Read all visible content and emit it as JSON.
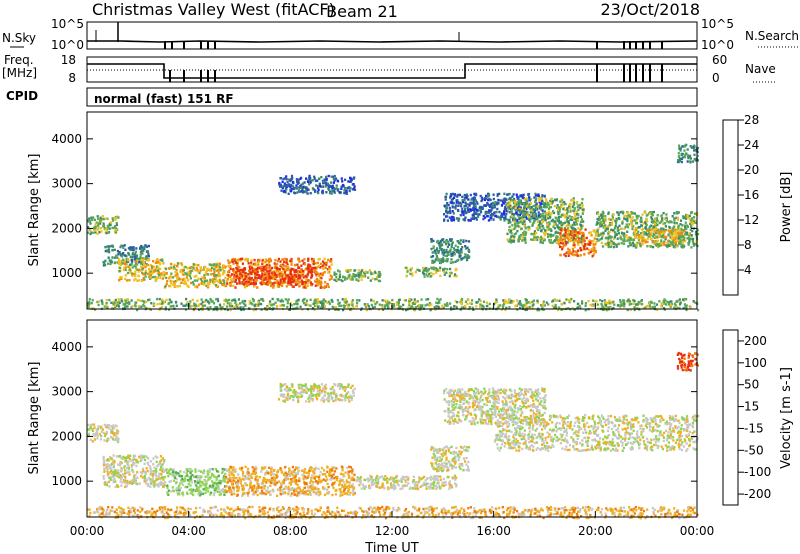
{
  "header": {
    "title": "Christmas Valley West (fitACF)",
    "beam": "Beam 21",
    "date": "23/Oct/2018"
  },
  "status_panels": {
    "nsky_label": "N.Sky",
    "nsky_ticks": [
      "10^5",
      "10^0"
    ],
    "nsearch_label": "N.Search",
    "freq_label_1": "Freq.",
    "freq_label_2": "[MHz]",
    "freq_ticks": [
      "18",
      "8"
    ],
    "nave_ticks": [
      "60",
      "0"
    ],
    "nave_label": "Nave",
    "cpid_label": "CPID",
    "cpid_value": "normal (fast) 151 RF"
  },
  "chart_data": [
    {
      "type": "heatmap",
      "name_hint": "power",
      "ylabel": "Slant Range [km]",
      "xlabel": "",
      "xlim": [
        0,
        24
      ],
      "ylim": [
        200,
        4600
      ],
      "yticks": [
        1000,
        2000,
        3000,
        4000
      ],
      "colorbar": {
        "label": "Power [dB]",
        "ticks": [
          "4",
          "8",
          "12",
          "16",
          "20",
          "24",
          "28"
        ],
        "colors": [
          "#1e28e6",
          "#2a5aa8",
          "#3c8a6e",
          "#58a858",
          "#f0c020",
          "#f08a10",
          "#e83010"
        ]
      },
      "regions": [
        {
          "x0": 0.0,
          "x1": 1.2,
          "y0": 1900,
          "y1": 2300,
          "level": 3
        },
        {
          "x0": 0.6,
          "x1": 2.4,
          "y0": 1200,
          "y1": 1650,
          "level": 2
        },
        {
          "x0": 1.2,
          "x1": 3.0,
          "y0": 850,
          "y1": 1350,
          "level": 4
        },
        {
          "x0": 3.0,
          "x1": 5.4,
          "y0": 700,
          "y1": 1250,
          "level": 4
        },
        {
          "x0": 5.4,
          "x1": 9.6,
          "y0": 700,
          "y1": 1350,
          "level": 5
        },
        {
          "x0": 5.8,
          "x1": 9.0,
          "y0": 780,
          "y1": 1150,
          "level": 6
        },
        {
          "x0": 9.6,
          "x1": 11.5,
          "y0": 850,
          "y1": 1100,
          "level": 3
        },
        {
          "x0": 12.5,
          "x1": 14.5,
          "y0": 950,
          "y1": 1150,
          "level": 3
        },
        {
          "x0": 13.5,
          "x1": 15.0,
          "y0": 1250,
          "y1": 1800,
          "level": 2
        },
        {
          "x0": 7.5,
          "x1": 10.5,
          "y0": 2800,
          "y1": 3200,
          "level": 1
        },
        {
          "x0": 14.0,
          "x1": 18.0,
          "y0": 2200,
          "y1": 2800,
          "level": 1
        },
        {
          "x0": 16.5,
          "x1": 19.5,
          "y0": 1700,
          "y1": 2700,
          "level": 3
        },
        {
          "x0": 18.5,
          "x1": 20.0,
          "y0": 1400,
          "y1": 2000,
          "level": 5
        },
        {
          "x0": 20.0,
          "x1": 24.0,
          "y0": 1600,
          "y1": 2400,
          "level": 3
        },
        {
          "x0": 21.5,
          "x1": 23.5,
          "y0": 1650,
          "y1": 2000,
          "level": 4
        },
        {
          "x0": 23.2,
          "x1": 24.0,
          "y0": 3500,
          "y1": 3900,
          "level": 2
        },
        {
          "x0": 0.0,
          "x1": 24.0,
          "y0": 200,
          "y1": 450,
          "level": 3
        }
      ]
    },
    {
      "type": "heatmap",
      "name_hint": "velocity",
      "ylabel": "Slant Range [km]",
      "xlabel": "Time UT",
      "xlim": [
        0,
        24
      ],
      "ylim": [
        200,
        4600
      ],
      "yticks": [
        1000,
        2000,
        3000,
        4000
      ],
      "xticks": [
        "00:00",
        "04:00",
        "08:00",
        "12:00",
        "16:00",
        "20:00",
        "00:00"
      ],
      "colorbar": {
        "label": "Velocity [m s-1]",
        "ticks": [
          "200",
          "100",
          "50",
          "15",
          "-15",
          "-50",
          "-100",
          "-200"
        ],
        "colors": [
          "#2040c0",
          "#3c8a6e",
          "#4cae4c",
          "#8ed650",
          "#c8c8c8",
          "#f0b020",
          "#f07a10",
          "#e83010"
        ]
      },
      "regions": [
        {
          "x0": 0.0,
          "x1": 1.2,
          "y0": 1900,
          "y1": 2300,
          "level": 4
        },
        {
          "x0": 0.6,
          "x1": 3.0,
          "y0": 900,
          "y1": 1600,
          "level": 4
        },
        {
          "x0": 3.0,
          "x1": 5.4,
          "y0": 700,
          "y1": 1300,
          "level": 3
        },
        {
          "x0": 5.4,
          "x1": 10.5,
          "y0": 700,
          "y1": 1350,
          "level": 5
        },
        {
          "x0": 10.5,
          "x1": 14.5,
          "y0": 850,
          "y1": 1150,
          "level": 4
        },
        {
          "x0": 13.5,
          "x1": 15.0,
          "y0": 1250,
          "y1": 1800,
          "level": 4
        },
        {
          "x0": 7.5,
          "x1": 10.5,
          "y0": 2800,
          "y1": 3200,
          "level": 4
        },
        {
          "x0": 14.0,
          "x1": 18.0,
          "y0": 2300,
          "y1": 3100,
          "level": 4
        },
        {
          "x0": 16.0,
          "x1": 24.0,
          "y0": 1700,
          "y1": 2500,
          "level": 4
        },
        {
          "x0": 23.2,
          "x1": 24.0,
          "y0": 3500,
          "y1": 3900,
          "level": 7
        },
        {
          "x0": 0.0,
          "x1": 24.0,
          "y0": 200,
          "y1": 450,
          "level": 5
        }
      ]
    }
  ]
}
